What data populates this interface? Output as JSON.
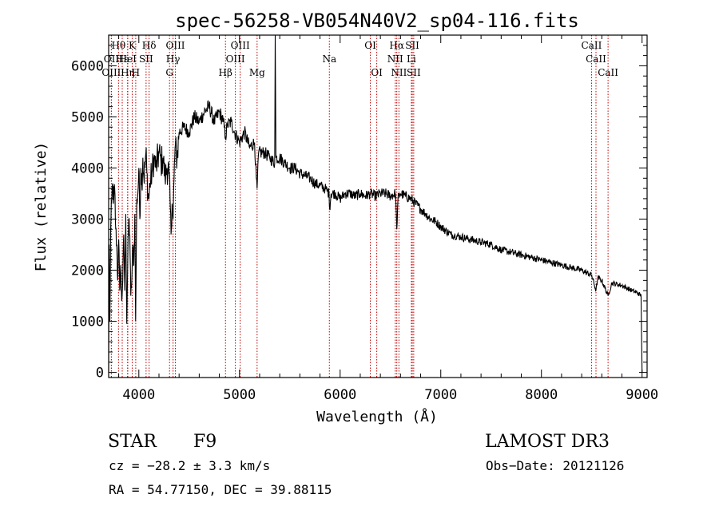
{
  "chart_data": {
    "type": "line",
    "title": "spec-56258-VB054N40V2_sp04-116.fits",
    "xlabel": "Wavelength (Å)",
    "ylabel": "Flux (relative)",
    "xlim": [
      3700,
      9050
    ],
    "ylim": [
      -100,
      6600
    ],
    "xticks": [
      4000,
      5000,
      6000,
      7000,
      8000,
      9000
    ],
    "yticks": [
      0,
      1000,
      2000,
      3000,
      4000,
      5000,
      6000
    ],
    "spectrum_anchors": [
      [
        3700,
        0
      ],
      [
        3705,
        2500
      ],
      [
        3712,
        1000
      ],
      [
        3720,
        2800
      ],
      [
        3730,
        3300
      ],
      [
        3740,
        3700
      ],
      [
        3750,
        3300
      ],
      [
        3760,
        3600
      ],
      [
        3770,
        2800
      ],
      [
        3780,
        2500
      ],
      [
        3790,
        1800
      ],
      [
        3800,
        2600
      ],
      [
        3810,
        1600
      ],
      [
        3820,
        2100
      ],
      [
        3830,
        1400
      ],
      [
        3840,
        1800
      ],
      [
        3850,
        2700
      ],
      [
        3860,
        1600
      ],
      [
        3870,
        3100
      ],
      [
        3880,
        950
      ],
      [
        3890,
        2200
      ],
      [
        3900,
        3000
      ],
      [
        3910,
        2700
      ],
      [
        3920,
        1500
      ],
      [
        3930,
        1800
      ],
      [
        3940,
        2500
      ],
      [
        3950,
        2100
      ],
      [
        3960,
        3100
      ],
      [
        3968,
        1000
      ],
      [
        3980,
        3400
      ],
      [
        3990,
        3500
      ],
      [
        4000,
        4000
      ],
      [
        4010,
        3000
      ],
      [
        4020,
        4000
      ],
      [
        4030,
        3700
      ],
      [
        4040,
        4200
      ],
      [
        4050,
        3800
      ],
      [
        4060,
        4000
      ],
      [
        4070,
        4300
      ],
      [
        4080,
        3900
      ],
      [
        4090,
        3500
      ],
      [
        4100,
        3400
      ],
      [
        4110,
        3700
      ],
      [
        4130,
        3900
      ],
      [
        4150,
        4200
      ],
      [
        4170,
        4000
      ],
      [
        4200,
        4300
      ],
      [
        4220,
        4100
      ],
      [
        4240,
        4200
      ],
      [
        4260,
        3800
      ],
      [
        4280,
        4000
      ],
      [
        4300,
        3900
      ],
      [
        4310,
        3400
      ],
      [
        4320,
        2700
      ],
      [
        4330,
        3300
      ],
      [
        4340,
        3000
      ],
      [
        4350,
        3800
      ],
      [
        4360,
        4400
      ],
      [
        4380,
        4200
      ],
      [
        4400,
        4700
      ],
      [
        4450,
        4800
      ],
      [
        4500,
        4700
      ],
      [
        4550,
        5000
      ],
      [
        4600,
        4900
      ],
      [
        4650,
        5100
      ],
      [
        4700,
        5200
      ],
      [
        4750,
        4900
      ],
      [
        4800,
        5100
      ],
      [
        4840,
        4900
      ],
      [
        4861,
        4600
      ],
      [
        4880,
        4850
      ],
      [
        4920,
        4900
      ],
      [
        4950,
        4700
      ],
      [
        5000,
        4500
      ],
      [
        5050,
        4700
      ],
      [
        5100,
        4400
      ],
      [
        5150,
        4500
      ],
      [
        5167,
        3800
      ],
      [
        5175,
        3600
      ],
      [
        5190,
        4300
      ],
      [
        5250,
        4300
      ],
      [
        5300,
        4200
      ],
      [
        5350,
        4100
      ],
      [
        5355,
        6600
      ],
      [
        5362,
        4200
      ],
      [
        5400,
        4200
      ],
      [
        5450,
        4100
      ],
      [
        5500,
        4000
      ],
      [
        5550,
        4000
      ],
      [
        5600,
        3900
      ],
      [
        5650,
        3850
      ],
      [
        5700,
        3800
      ],
      [
        5750,
        3700
      ],
      [
        5800,
        3650
      ],
      [
        5850,
        3600
      ],
      [
        5890,
        3500
      ],
      [
        5896,
        3200
      ],
      [
        5910,
        3500
      ],
      [
        5950,
        3500
      ],
      [
        6000,
        3400
      ],
      [
        6050,
        3500
      ],
      [
        6100,
        3500
      ],
      [
        6150,
        3450
      ],
      [
        6200,
        3500
      ],
      [
        6250,
        3450
      ],
      [
        6300,
        3500
      ],
      [
        6350,
        3450
      ],
      [
        6400,
        3500
      ],
      [
        6450,
        3500
      ],
      [
        6500,
        3450
      ],
      [
        6550,
        3500
      ],
      [
        6563,
        2800
      ],
      [
        6575,
        3400
      ],
      [
        6600,
        3500
      ],
      [
        6650,
        3450
      ],
      [
        6700,
        3400
      ],
      [
        6750,
        3300
      ],
      [
        6800,
        3200
      ],
      [
        6850,
        3100
      ],
      [
        6900,
        3000
      ],
      [
        6950,
        2950
      ],
      [
        7000,
        2850
      ],
      [
        7100,
        2700
      ],
      [
        7200,
        2650
      ],
      [
        7300,
        2600
      ],
      [
        7400,
        2550
      ],
      [
        7500,
        2500
      ],
      [
        7600,
        2400
      ],
      [
        7700,
        2350
      ],
      [
        7800,
        2300
      ],
      [
        7900,
        2250
      ],
      [
        8000,
        2200
      ],
      [
        8100,
        2150
      ],
      [
        8200,
        2100
      ],
      [
        8300,
        2050
      ],
      [
        8400,
        2000
      ],
      [
        8500,
        1900
      ],
      [
        8542,
        1600
      ],
      [
        8560,
        1850
      ],
      [
        8600,
        1800
      ],
      [
        8662,
        1500
      ],
      [
        8700,
        1750
      ],
      [
        8800,
        1700
      ],
      [
        8900,
        1600
      ],
      [
        8960,
        1550
      ],
      [
        8990,
        1500
      ],
      [
        9000,
        0
      ]
    ],
    "emission_lines": [
      {
        "label": "Hθ",
        "x": 3798,
        "row": 0
      },
      {
        "label": "OII",
        "x": 3727,
        "row": 1
      },
      {
        "label": "OIII",
        "x": 3727,
        "row": 2
      },
      {
        "label": "Hε",
        "x": 3835,
        "row": 1
      },
      {
        "label": "Hη",
        "x": 3890,
        "row": 2
      },
      {
        "label": "K",
        "x": 3934,
        "row": 0
      },
      {
        "label": "HeI",
        "x": 3888,
        "row": 1
      },
      {
        "label": "SII",
        "x": 4072,
        "row": 1
      },
      {
        "label": "H",
        "x": 3969,
        "row": 2
      },
      {
        "label": "Hδ",
        "x": 4102,
        "row": 0
      },
      {
        "label": "OIII",
        "x": 4363,
        "row": 0
      },
      {
        "label": "Hγ",
        "x": 4340,
        "row": 1
      },
      {
        "label": "G",
        "x": 4305,
        "row": 2
      },
      {
        "label": "Hβ",
        "x": 4861,
        "row": 2
      },
      {
        "label": "OIII",
        "x": 5007,
        "row": 0
      },
      {
        "label": "OIII",
        "x": 4959,
        "row": 1
      },
      {
        "label": "Mg",
        "x": 5175,
        "row": 2
      },
      {
        "label": "Na",
        "x": 5893,
        "row": 1
      },
      {
        "label": "OI",
        "x": 6300,
        "row": 0
      },
      {
        "label": "OI",
        "x": 6364,
        "row": 2
      },
      {
        "label": "Hα",
        "x": 6563,
        "row": 0
      },
      {
        "label": "NII",
        "x": 6548,
        "row": 1
      },
      {
        "label": "NII",
        "x": 6584,
        "row": 2
      },
      {
        "label": "SII",
        "x": 6717,
        "row": 0
      },
      {
        "label": "Li",
        "x": 6708,
        "row": 1
      },
      {
        "label": "SII",
        "x": 6731,
        "row": 2
      },
      {
        "label": "CaII",
        "x": 8498,
        "row": 0
      },
      {
        "label": "CaII",
        "x": 8542,
        "row": 1
      },
      {
        "label": "CaII",
        "x": 8662,
        "row": 2
      }
    ],
    "line_color": "#000000",
    "marker_color": "#c00000"
  },
  "info": {
    "object_class": "STAR",
    "subclass": "F9",
    "survey": "LAMOST DR3",
    "redshift": "cz = −28.2 ± 3.3 km/s",
    "obs_date": "Obs−Date: 20121126",
    "coords": "RA =  54.77150, DEC =  39.88115"
  }
}
